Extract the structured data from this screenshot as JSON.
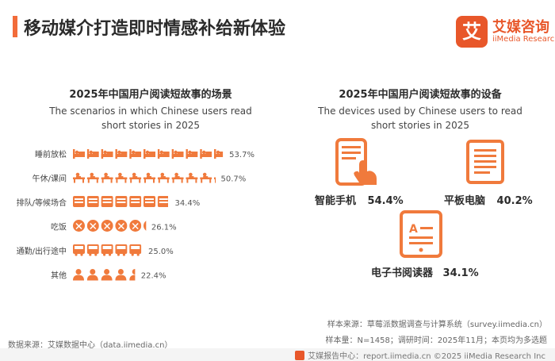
{
  "header": {
    "title": "移动媒介打造即时情感补给新体验",
    "logo_mark": "艾",
    "logo_cn": "艾媒咨询",
    "logo_en": "iiMedia Research"
  },
  "chart_data": [
    {
      "type": "bar",
      "title": "2025年中国用户阅读短故事的场景",
      "subtitle": "The scenarios in which Chinese users read short stories in 2025",
      "categories": [
        "睡前放松",
        "午休/课间",
        "排队/等候场合",
        "吃饭",
        "通勤/出行途中",
        "其他"
      ],
      "values": [
        53.7,
        50.7,
        34.4,
        26.1,
        25.0,
        22.4
      ],
      "value_labels": [
        "53.7%",
        "50.7%",
        "34.4%",
        "26.1%",
        "25.0%",
        "22.4%"
      ],
      "icons": [
        "bed-icon",
        "desk-icon",
        "queue-icon",
        "dining-icon",
        "bus-icon",
        "person-icon"
      ],
      "color": "#f07a3c"
    },
    {
      "type": "table",
      "title": "2025年中国用户阅读短故事的设备",
      "subtitle": "The devices used by Chinese users to read short stories in 2025",
      "devices": [
        {
          "name": "智能手机",
          "value": 54.4,
          "label": "54.4%",
          "icon": "smartphone-icon"
        },
        {
          "name": "平板电脑",
          "value": 40.2,
          "label": "40.2%",
          "icon": "tablet-icon"
        },
        {
          "name": "电子书阅读器",
          "value": 34.1,
          "label": "34.1%",
          "icon": "ereader-icon"
        }
      ]
    }
  ],
  "left_title": {
    "cn": "2025年中国用户阅读短故事的场景",
    "en1": "The scenarios in which Chinese users read",
    "en2": "short stories in 2025"
  },
  "right_title": {
    "cn": "2025年中国用户阅读短故事的设备",
    "en1": "The devices used by Chinese users to read",
    "en2": "short stories in 2025"
  },
  "footer": {
    "sample_source": "样本来源：草莓派数据调查与计算系统（survey.iimedia.cn）",
    "sample_info": "样本量：N=1458；调研时间：2025年11月；本页均为多选题",
    "data_source": "数据来源：艾媒数据中心（data.iimedia.cn）",
    "bottom": "艾媒报告中心：report.iimedia.cn  ©2025  iiMedia Research  Inc"
  }
}
